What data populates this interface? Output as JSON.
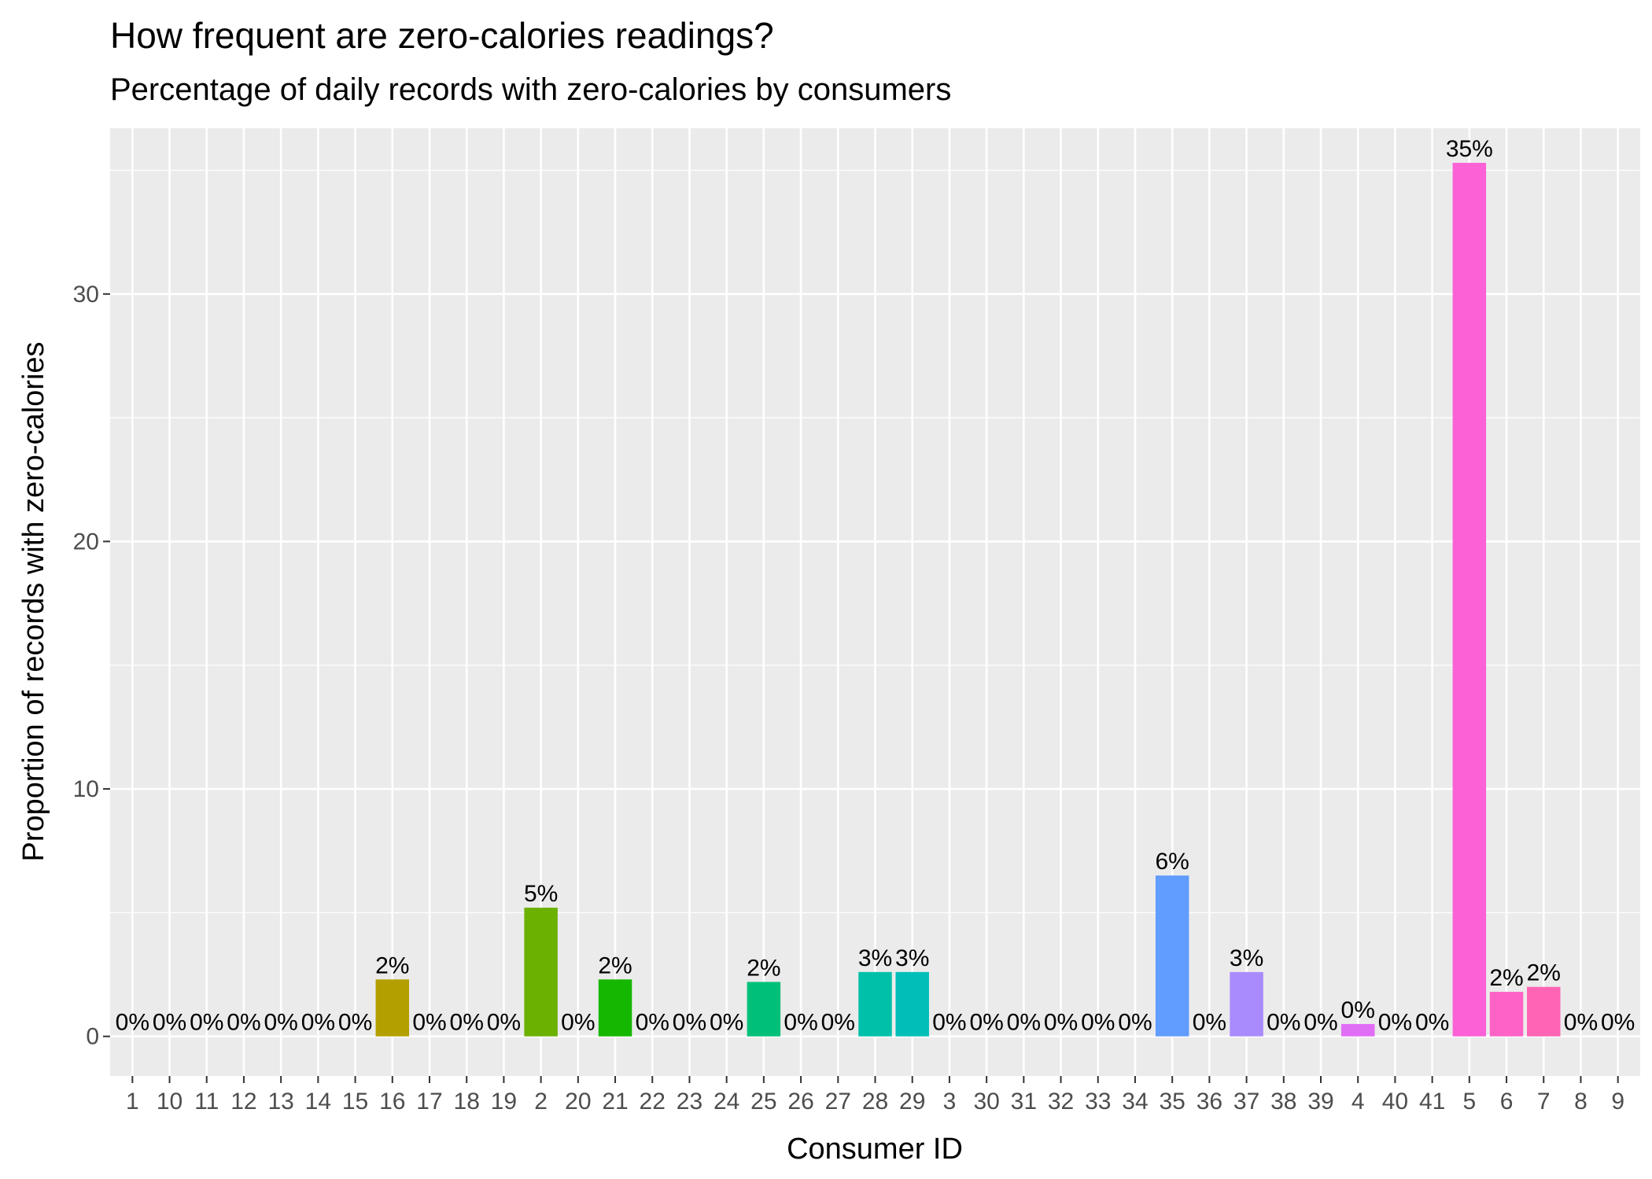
{
  "chart_data": {
    "type": "bar",
    "title": "How frequent are zero-calories readings?",
    "subtitle": "Percentage of daily records with zero-calories by consumers",
    "xlabel": "Consumer ID",
    "ylabel": "Proportion of records with zero-calories",
    "ylim": [
      -1.6,
      36.7
    ],
    "yticks": [
      0,
      10,
      20,
      30
    ],
    "grid": true,
    "legend": "none",
    "categories": [
      "1",
      "10",
      "11",
      "12",
      "13",
      "14",
      "15",
      "16",
      "17",
      "18",
      "19",
      "2",
      "20",
      "21",
      "22",
      "23",
      "24",
      "25",
      "26",
      "27",
      "28",
      "29",
      "3",
      "30",
      "31",
      "32",
      "33",
      "34",
      "35",
      "36",
      "37",
      "38",
      "39",
      "4",
      "40",
      "41",
      "5",
      "6",
      "7",
      "8",
      "9"
    ],
    "values": [
      0,
      0,
      0,
      0,
      0,
      0,
      0,
      2.3,
      0,
      0,
      0,
      5.2,
      0,
      2.3,
      0,
      0,
      0,
      2.2,
      0,
      0,
      2.6,
      2.6,
      0,
      0,
      0,
      0,
      0,
      0,
      6.5,
      0,
      2.6,
      0,
      0,
      0.5,
      0,
      0,
      35.3,
      1.8,
      2.0,
      0,
      0
    ],
    "data_labels": [
      "0%",
      "0%",
      "0%",
      "0%",
      "0%",
      "0%",
      "0%",
      "2%",
      "0%",
      "0%",
      "0%",
      "5%",
      "0%",
      "2%",
      "0%",
      "0%",
      "0%",
      "2%",
      "0%",
      "0%",
      "3%",
      "3%",
      "0%",
      "0%",
      "0%",
      "0%",
      "0%",
      "0%",
      "6%",
      "0%",
      "3%",
      "0%",
      "0%",
      "0%",
      "0%",
      "0%",
      "35%",
      "2%",
      "2%",
      "0%",
      "0%"
    ],
    "colors": [
      "#F8766D",
      "#F27D53",
      "#EA8331",
      "#E18A00",
      "#D79000",
      "#CC9600",
      "#C09B00",
      "#B3A000",
      "#A4A500",
      "#94AA00",
      "#83AD00",
      "#6BB100",
      "#4EB400",
      "#15B700",
      "#00BA38",
      "#00BC53",
      "#00BE67",
      "#00C079",
      "#00C08B",
      "#00C19A",
      "#00C0AA",
      "#00BFB8",
      "#00BDC5",
      "#00BAD2",
      "#00B6DE",
      "#00B1E9",
      "#00ABF3",
      "#00A4FB",
      "#619CFF",
      "#8B93FF",
      "#A98BFE",
      "#BF80FF",
      "#D175FC",
      "#E16DF7",
      "#EC69EF",
      "#F564E3",
      "#FC61D5",
      "#FF62C6",
      "#FF65B4",
      "#FF69A2",
      "#FF6C91"
    ]
  }
}
